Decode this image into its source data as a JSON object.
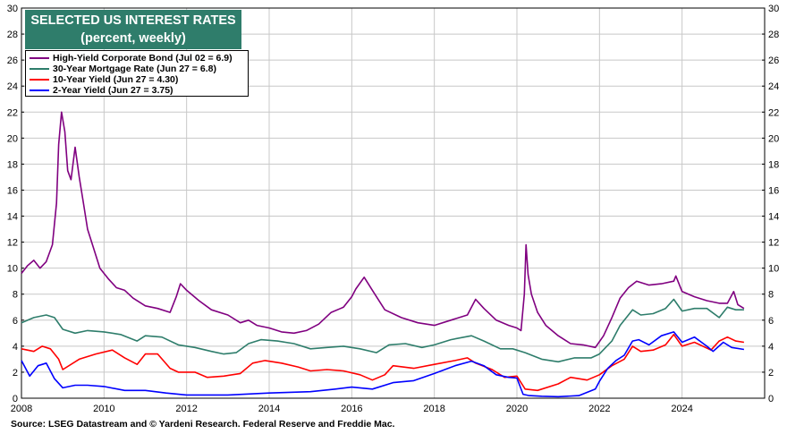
{
  "title": {
    "line1": "SELECTED US INTEREST RATES",
    "line2": "(percent, weekly)"
  },
  "source": "Source: LSEG Datastream and © Yardeni Research. Federal Reserve and Freddie Mac.",
  "chart_data": {
    "type": "line",
    "title": "SELECTED US INTEREST RATES",
    "subtitle": "(percent, weekly)",
    "xlabel": "",
    "ylabel": "",
    "xlim": [
      2008.0,
      2026.0
    ],
    "ylim": [
      0,
      30
    ],
    "xticks": [
      "2008",
      "2010",
      "2012",
      "2014",
      "2016",
      "2018",
      "2020",
      "2022",
      "2024"
    ],
    "yticks": [
      "0",
      "2",
      "4",
      "6",
      "8",
      "10",
      "12",
      "14",
      "16",
      "18",
      "20",
      "22",
      "24",
      "26",
      "28",
      "30"
    ],
    "grid": true,
    "legend_position": "top-left",
    "series": [
      {
        "name": "High-Yield Corporate Bond (Jul 02 = 6.9)",
        "color": "#800080",
        "x": [
          2008.0,
          2008.15,
          2008.3,
          2008.45,
          2008.6,
          2008.75,
          2008.85,
          2008.9,
          2008.97,
          2009.05,
          2009.12,
          2009.2,
          2009.3,
          2009.4,
          2009.5,
          2009.6,
          2009.75,
          2009.9,
          2010.1,
          2010.3,
          2010.5,
          2010.7,
          2011.0,
          2011.3,
          2011.6,
          2011.75,
          2011.85,
          2012.0,
          2012.3,
          2012.6,
          2013.0,
          2013.3,
          2013.5,
          2013.7,
          2014.0,
          2014.3,
          2014.6,
          2014.9,
          2015.2,
          2015.5,
          2015.8,
          2016.0,
          2016.1,
          2016.3,
          2016.5,
          2016.8,
          2017.2,
          2017.6,
          2018.0,
          2018.4,
          2018.8,
          2019.0,
          2019.2,
          2019.5,
          2019.8,
          2020.0,
          2020.1,
          2020.18,
          2020.22,
          2020.27,
          2020.35,
          2020.5,
          2020.7,
          2021.0,
          2021.3,
          2021.6,
          2021.9,
          2022.1,
          2022.3,
          2022.5,
          2022.7,
          2022.9,
          2023.2,
          2023.5,
          2023.8,
          2023.85,
          2024.0,
          2024.3,
          2024.6,
          2024.9,
          2025.1,
          2025.25,
          2025.35,
          2025.5
        ],
        "values": [
          9.6,
          10.2,
          10.6,
          10.0,
          10.5,
          11.8,
          15.0,
          19.5,
          22.0,
          20.5,
          17.5,
          16.8,
          19.3,
          17.0,
          15.0,
          13.0,
          11.5,
          10.0,
          9.2,
          8.5,
          8.3,
          7.7,
          7.1,
          6.9,
          6.6,
          7.8,
          8.8,
          8.3,
          7.5,
          6.8,
          6.4,
          5.8,
          6.0,
          5.6,
          5.4,
          5.1,
          5.0,
          5.2,
          5.7,
          6.6,
          7.0,
          7.8,
          8.4,
          9.3,
          8.3,
          6.8,
          6.2,
          5.8,
          5.6,
          6.0,
          6.4,
          7.6,
          6.9,
          6.0,
          5.6,
          5.4,
          5.2,
          8.0,
          11.8,
          9.5,
          8.0,
          6.6,
          5.6,
          4.8,
          4.2,
          4.1,
          3.9,
          4.8,
          6.2,
          7.7,
          8.5,
          9.0,
          8.7,
          8.8,
          9.0,
          9.4,
          8.2,
          7.8,
          7.5,
          7.3,
          7.3,
          8.2,
          7.2,
          6.9
        ]
      },
      {
        "name": "30-Year Mortgage Rate (Jun 27 = 6.8)",
        "color": "#2e7d6b",
        "x": [
          2008.0,
          2008.3,
          2008.6,
          2008.8,
          2009.0,
          2009.3,
          2009.6,
          2010.0,
          2010.4,
          2010.8,
          2011.0,
          2011.4,
          2011.8,
          2012.2,
          2012.6,
          2012.9,
          2013.2,
          2013.5,
          2013.8,
          2014.2,
          2014.6,
          2015.0,
          2015.4,
          2015.8,
          2016.2,
          2016.6,
          2016.9,
          2017.3,
          2017.7,
          2018.0,
          2018.4,
          2018.9,
          2019.2,
          2019.6,
          2019.9,
          2020.2,
          2020.6,
          2021.0,
          2021.4,
          2021.8,
          2022.0,
          2022.3,
          2022.5,
          2022.8,
          2023.0,
          2023.3,
          2023.6,
          2023.8,
          2024.0,
          2024.3,
          2024.6,
          2024.9,
          2025.1,
          2025.3,
          2025.5
        ],
        "values": [
          5.8,
          6.2,
          6.4,
          6.2,
          5.3,
          5.0,
          5.2,
          5.1,
          4.9,
          4.4,
          4.8,
          4.7,
          4.1,
          3.9,
          3.6,
          3.4,
          3.5,
          4.2,
          4.5,
          4.4,
          4.2,
          3.8,
          3.9,
          4.0,
          3.8,
          3.5,
          4.1,
          4.2,
          3.9,
          4.1,
          4.5,
          4.8,
          4.4,
          3.8,
          3.8,
          3.5,
          3.0,
          2.8,
          3.1,
          3.1,
          3.4,
          4.4,
          5.6,
          6.8,
          6.4,
          6.5,
          6.9,
          7.6,
          6.7,
          6.9,
          6.9,
          6.2,
          7.0,
          6.8,
          6.8
        ]
      },
      {
        "name": "10-Year Yield (Jun 27 = 4.30)",
        "color": "#ff0000",
        "x": [
          2008.0,
          2008.3,
          2008.5,
          2008.7,
          2008.9,
          2009.0,
          2009.4,
          2009.8,
          2010.2,
          2010.5,
          2010.8,
          2011.0,
          2011.3,
          2011.6,
          2011.8,
          2012.2,
          2012.5,
          2012.9,
          2013.3,
          2013.6,
          2013.9,
          2014.3,
          2014.7,
          2015.0,
          2015.4,
          2015.8,
          2016.2,
          2016.5,
          2016.8,
          2017.0,
          2017.5,
          2018.0,
          2018.5,
          2018.8,
          2019.0,
          2019.4,
          2019.7,
          2020.0,
          2020.2,
          2020.5,
          2021.0,
          2021.3,
          2021.7,
          2022.0,
          2022.3,
          2022.6,
          2022.8,
          2023.0,
          2023.3,
          2023.6,
          2023.8,
          2024.0,
          2024.3,
          2024.7,
          2024.9,
          2025.1,
          2025.3,
          2025.5
        ],
        "values": [
          3.8,
          3.6,
          4.0,
          3.8,
          3.0,
          2.2,
          3.0,
          3.4,
          3.7,
          3.1,
          2.6,
          3.4,
          3.4,
          2.3,
          2.0,
          2.0,
          1.6,
          1.7,
          1.9,
          2.7,
          2.9,
          2.7,
          2.4,
          2.1,
          2.2,
          2.1,
          1.8,
          1.4,
          1.8,
          2.5,
          2.3,
          2.6,
          2.9,
          3.1,
          2.7,
          2.2,
          1.6,
          1.7,
          0.7,
          0.6,
          1.1,
          1.6,
          1.4,
          1.8,
          2.5,
          3.0,
          4.0,
          3.6,
          3.7,
          4.1,
          4.9,
          4.0,
          4.3,
          3.7,
          4.4,
          4.7,
          4.4,
          4.3
        ]
      },
      {
        "name": "2-Year Yield (Jun 27 = 3.75)",
        "color": "#0000ff",
        "x": [
          2008.0,
          2008.2,
          2008.4,
          2008.6,
          2008.8,
          2009.0,
          2009.3,
          2009.6,
          2010.0,
          2010.5,
          2011.0,
          2011.5,
          2012.0,
          2013.0,
          2014.0,
          2015.0,
          2015.6,
          2016.0,
          2016.5,
          2017.0,
          2017.5,
          2018.0,
          2018.5,
          2018.9,
          2019.2,
          2019.5,
          2019.8,
          2020.0,
          2020.15,
          2020.3,
          2020.6,
          2021.0,
          2021.5,
          2021.9,
          2022.0,
          2022.2,
          2022.4,
          2022.6,
          2022.8,
          2022.95,
          2023.2,
          2023.5,
          2023.8,
          2024.0,
          2024.3,
          2024.6,
          2024.75,
          2025.0,
          2025.2,
          2025.5
        ],
        "values": [
          2.9,
          1.7,
          2.5,
          2.7,
          1.5,
          0.8,
          1.0,
          1.0,
          0.9,
          0.6,
          0.6,
          0.4,
          0.25,
          0.25,
          0.4,
          0.5,
          0.7,
          0.85,
          0.7,
          1.2,
          1.35,
          1.9,
          2.5,
          2.85,
          2.5,
          1.8,
          1.6,
          1.55,
          0.3,
          0.2,
          0.15,
          0.12,
          0.2,
          0.7,
          1.3,
          2.3,
          2.9,
          3.3,
          4.4,
          4.5,
          4.1,
          4.8,
          5.1,
          4.3,
          4.7,
          4.0,
          3.6,
          4.3,
          3.9,
          3.75
        ]
      }
    ]
  }
}
